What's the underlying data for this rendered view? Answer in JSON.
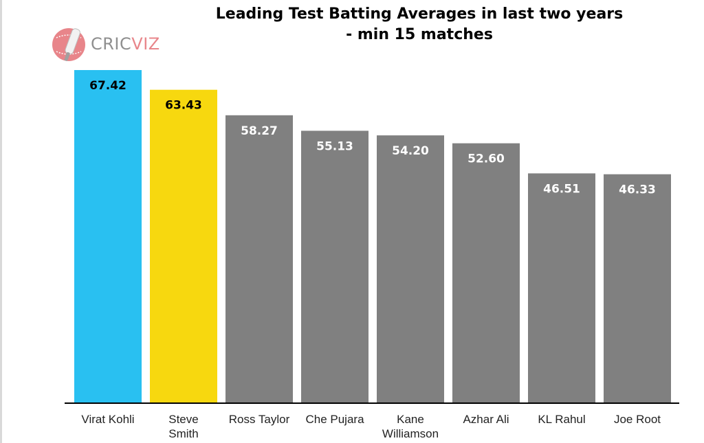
{
  "logo": {
    "text_main": "CRIC",
    "text_accent": "VIZ"
  },
  "chart_data": {
    "type": "bar",
    "title": "Leading Test Batting Averages in last two years\n- min 15 matches",
    "categories": [
      "Virat Kohli",
      "Steve\nSmith",
      "Ross Taylor",
      "Che Pujara",
      "Kane\nWilliamson",
      "Azhar Ali",
      "KL Rahul",
      "Joe Root"
    ],
    "values": [
      67.42,
      63.43,
      58.27,
      55.13,
      54.2,
      52.6,
      46.51,
      46.33
    ],
    "value_labels": [
      "67.42",
      "63.43",
      "58.27",
      "55.13",
      "54.20",
      "52.60",
      "46.51",
      "46.33"
    ],
    "colors": [
      "#29c0f1",
      "#f7d80f",
      "#808080",
      "#808080",
      "#808080",
      "#808080",
      "#808080",
      "#808080"
    ],
    "label_colors": [
      "#000000",
      "#000000",
      "#ffffff",
      "#ffffff",
      "#ffffff",
      "#ffffff",
      "#ffffff",
      "#ffffff"
    ],
    "xlabel": "",
    "ylabel": "",
    "grid": false
  }
}
